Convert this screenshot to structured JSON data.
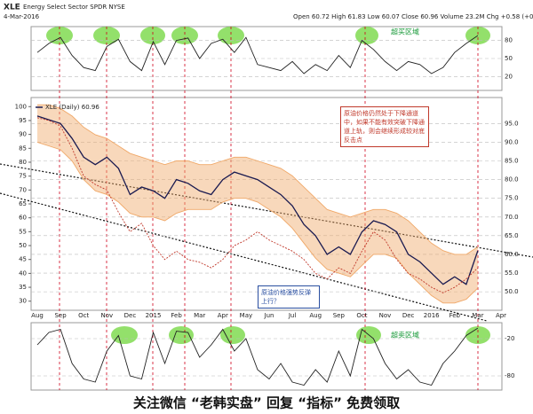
{
  "header": {
    "symbol": "XLE",
    "title": "Energy Select Sector SPDR NYSE",
    "date": "4-Mar-2016",
    "quote": "Open 60.72  High 61.83  Low 60.07  Close 60.96  Volume 23.2M  Chg +0.58 (+0.96%)"
  },
  "chart_data": [
    {
      "type": "line",
      "annotation": "超买区域",
      "series": [
        {
          "color": "#222222",
          "values": [
            60,
            75,
            85,
            55,
            35,
            30,
            70,
            82,
            45,
            30,
            78,
            40,
            80,
            84,
            50,
            75,
            82,
            60,
            85,
            40,
            35,
            30,
            45,
            25,
            40,
            30,
            55,
            35,
            80,
            65,
            45,
            30,
            45,
            40,
            25,
            35,
            60,
            75,
            88,
            null,
            null
          ]
        }
      ],
      "ylim": [
        0,
        100
      ],
      "yticks": [
        20,
        50,
        80
      ],
      "grid": true
    },
    {
      "type": "line",
      "categories": [
        "Aug",
        null,
        "Sep",
        null,
        "Oct",
        null,
        "Nov",
        null,
        "Dec",
        null,
        "2015",
        null,
        "Feb",
        null,
        "Mar",
        null,
        "Apr",
        null,
        "May",
        null,
        "Jun",
        null,
        "Jul",
        null,
        "Aug",
        null,
        "Sep",
        null,
        "Oct",
        null,
        "Nov",
        null,
        "Dec",
        null,
        "2016",
        null,
        "Feb",
        null,
        "Mar",
        null,
        "Apr"
      ],
      "series": [
        {
          "color": "#f0a868",
          "values": [
            100,
            100,
            99,
            97,
            94,
            92,
            91,
            89,
            87,
            86,
            85,
            84,
            85,
            85,
            84,
            84,
            85,
            86,
            86,
            85,
            84,
            83,
            81,
            78,
            75,
            72,
            71,
            70,
            71,
            72,
            72,
            71,
            69,
            66,
            63,
            61,
            60,
            60,
            62,
            null,
            null
          ]
        },
        {
          "color": "#f0a868",
          "values": [
            90,
            89,
            88,
            85,
            80,
            77,
            76,
            74,
            71,
            70,
            70,
            69,
            71,
            72,
            72,
            72,
            74,
            75,
            75,
            74,
            72,
            70,
            67,
            63,
            59,
            56,
            55,
            54,
            57,
            60,
            60,
            59,
            55,
            52,
            49,
            47,
            47,
            48,
            51,
            null,
            null
          ]
        },
        {
          "name": "XLE (Daily) 60.96",
          "color": "#1a1a50",
          "values": [
            97,
            96,
            95,
            91,
            86,
            84,
            86,
            83,
            76,
            78,
            77,
            75,
            80,
            79,
            77,
            76,
            80,
            82,
            81,
            80,
            78,
            76,
            73,
            68,
            65,
            60,
            62,
            60,
            66,
            69,
            68,
            66,
            60,
            58,
            55,
            52,
            54,
            52,
            61,
            null,
            null
          ]
        },
        {
          "color": "#c0392b",
          "axis": "y2",
          "dashed": true,
          "values": [
            96,
            95,
            93,
            85,
            75,
            72,
            70,
            62,
            55,
            58,
            50,
            45,
            48,
            45,
            44,
            42,
            45,
            50,
            52,
            55,
            52,
            50,
            48,
            45,
            40,
            38,
            42,
            40,
            48,
            55,
            52,
            45,
            40,
            38,
            35,
            33,
            35,
            38,
            42,
            null,
            null
          ]
        }
      ],
      "ylim": [
        46,
        101
      ],
      "yticks": [
        {
          "value": 95,
          "label": "95.0"
        },
        {
          "value": 90,
          "label": "90.0"
        },
        {
          "value": 85,
          "label": "85.0"
        },
        {
          "value": 80,
          "label": "80.0"
        },
        {
          "value": 75,
          "label": "75.0"
        },
        {
          "value": 70,
          "label": "70.0"
        },
        {
          "value": 65,
          "label": "65.0"
        },
        {
          "value": 60,
          "label": "60.0"
        },
        {
          "value": 55,
          "label": "55.0"
        },
        {
          "value": 50,
          "label": "50.0"
        }
      ],
      "y2lim": [
        28,
        102
      ],
      "y2ticks": [
        100,
        95,
        90,
        85,
        80,
        75,
        70,
        65,
        60,
        55,
        50,
        45,
        40,
        35,
        30
      ],
      "grid": true,
      "annotations": [
        "原油价格仍然处于下降通道中，如果不能有效突破下降通道上轨，则会继续形成较对底反击点",
        "原油价格强势反弹上行？"
      ]
    },
    {
      "type": "line",
      "annotation": "超卖区域",
      "series": [
        {
          "color": "#222222",
          "values": [
            -30,
            -10,
            -5,
            -60,
            -85,
            -90,
            -40,
            -15,
            -80,
            -85,
            -10,
            -60,
            -8,
            -10,
            -50,
            -30,
            -5,
            -40,
            -20,
            -70,
            -85,
            -60,
            -90,
            -95,
            -70,
            -90,
            -40,
            -80,
            -5,
            -20,
            -60,
            -85,
            -70,
            -90,
            -95,
            -60,
            -40,
            -15,
            -3,
            null,
            null
          ]
        }
      ],
      "ylim": [
        -100,
        0
      ],
      "yticks": [
        -20,
        -80
      ],
      "grid": true
    }
  ],
  "watermark": "关注微信 “老韩实盘” 回复 “指标” 免费领取"
}
